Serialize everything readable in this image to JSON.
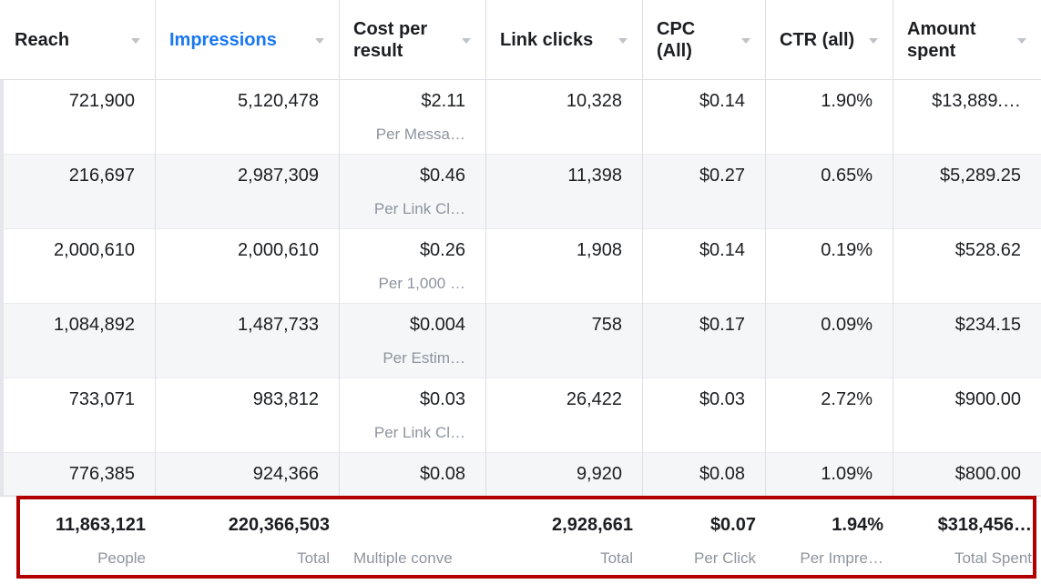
{
  "header": {
    "columns": [
      "Reach",
      "Impressions",
      "Cost per result",
      "Link clicks",
      "CPC (All)",
      "CTR (all)",
      "Amount spent"
    ]
  },
  "table": {
    "rows": [
      [
        "721,900",
        "5,120,478",
        {
          "value": "$2.11",
          "sub": "Per Messa…"
        },
        "10,328",
        "$0.14",
        "1.90%",
        "$13,889.…"
      ],
      [
        "216,697",
        "2,987,309",
        {
          "value": "$0.46",
          "sub": "Per Link Cl…"
        },
        "11,398",
        "$0.27",
        "0.65%",
        "$5,289.25"
      ],
      [
        "2,000,610",
        "2,000,610",
        {
          "value": "$0.26",
          "sub": "Per 1,000 …"
        },
        "1,908",
        "$0.14",
        "0.19%",
        "$528.62"
      ],
      [
        "1,084,892",
        "1,487,733",
        {
          "value": "$0.004",
          "sub": "Per Estim…"
        },
        "758",
        "$0.17",
        "0.09%",
        "$234.15"
      ],
      [
        "733,071",
        "983,812",
        {
          "value": "$0.03",
          "sub": "Per Link Cl…"
        },
        "26,422",
        "$0.03",
        "2.72%",
        "$900.00"
      ],
      [
        "776,385",
        "924,366",
        {
          "value": "$0.08"
        },
        "9,920",
        "$0.08",
        "1.09%",
        "$800.00"
      ]
    ]
  },
  "footer": {
    "cells": [
      {
        "value": "11,863,121",
        "sub": "People"
      },
      {
        "value": "220,366,503",
        "sub": "Total"
      },
      {
        "sub": "Multiple conve"
      },
      {
        "value": "2,928,661",
        "sub": "Total"
      },
      {
        "value": "$0.07",
        "sub": "Per Click"
      },
      {
        "value": "1.94%",
        "sub": "Per Impre…"
      },
      {
        "value": "$318,456…",
        "sub": "Total Spent"
      }
    ]
  }
}
